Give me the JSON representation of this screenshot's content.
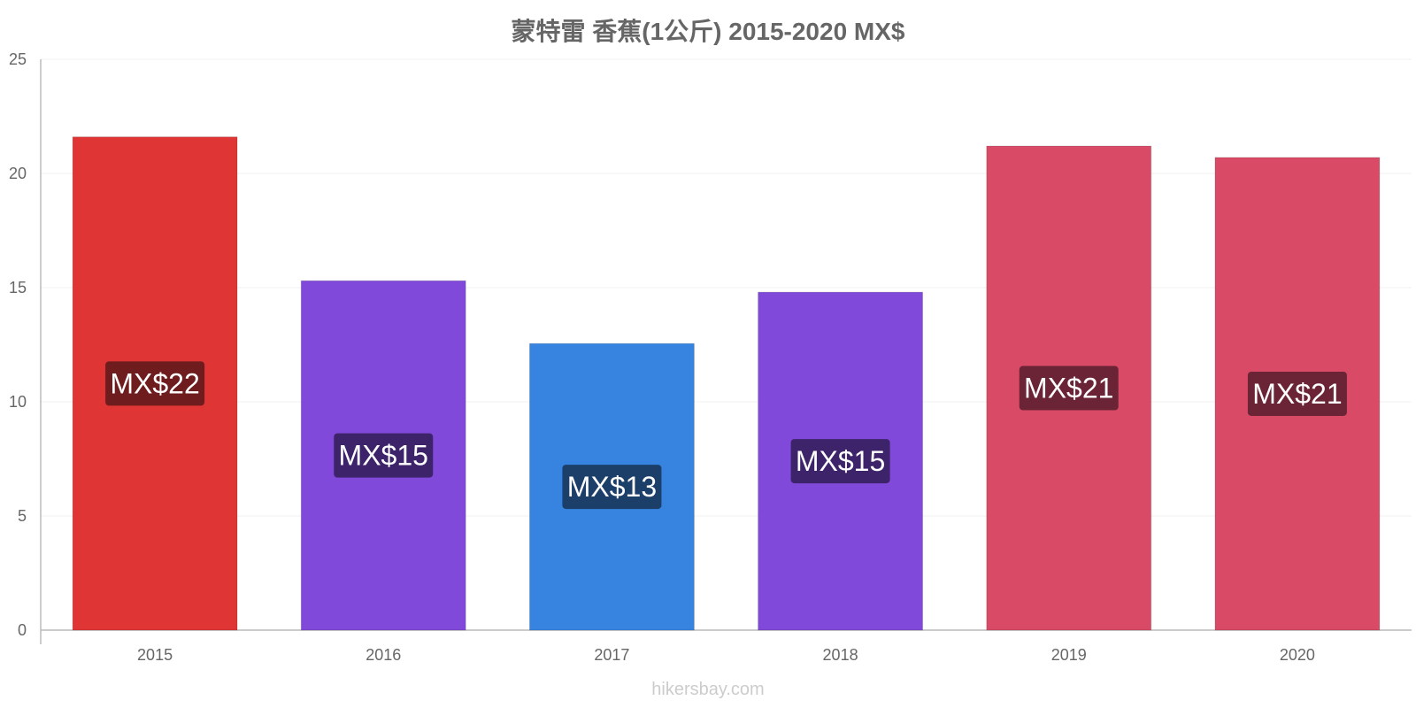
{
  "chart_data": {
    "type": "bar",
    "title": "蒙特雷 香蕉(1公斤) 2015-2020 MX$",
    "xlabel": "",
    "ylabel": "",
    "categories": [
      "2015",
      "2016",
      "2017",
      "2018",
      "2019",
      "2020"
    ],
    "values": [
      21.6,
      15.3,
      12.55,
      14.8,
      21.2,
      20.7
    ],
    "value_labels": [
      "MX$22",
      "MX$15",
      "MX$13",
      "MX$15",
      "MX$21",
      "MX$21"
    ],
    "bar_colors": [
      "#e03535",
      "#8149d9",
      "#3684e0",
      "#8149d9",
      "#d94a66",
      "#d94a66"
    ],
    "label_bg_colors": [
      "#6e1c1e",
      "#3d236a",
      "#1c3f6a",
      "#3d236a",
      "#6b2436",
      "#6b2436"
    ],
    "yticks": [
      0,
      5,
      10,
      15,
      20,
      25
    ],
    "ylim": [
      0,
      25
    ],
    "grid": true,
    "legend": "none"
  },
  "watermark": "hikersbay.com"
}
